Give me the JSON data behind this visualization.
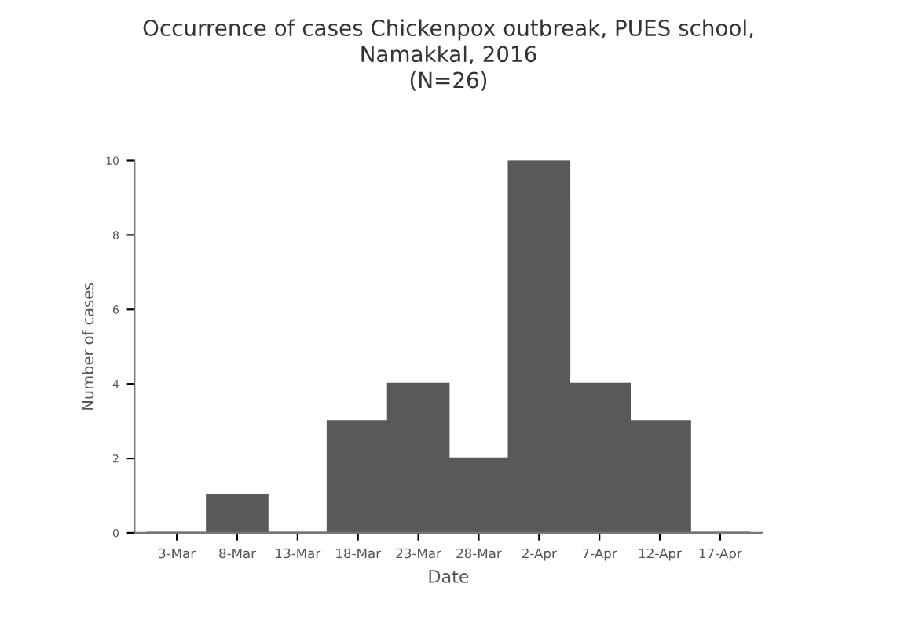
{
  "chart_data": {
    "type": "bar",
    "title": "Occurrence of cases Chickenpox outbreak, PUES school,\nNamakkal, 2016\n(N=26)",
    "xlabel": "Date",
    "ylabel": "Number of cases",
    "categories": [
      "3-Mar",
      "8-Mar",
      "13-Mar",
      "18-Mar",
      "23-Mar",
      "28-Mar",
      "2-Apr",
      "7-Apr",
      "12-Apr",
      "17-Apr"
    ],
    "values": [
      0,
      1,
      0,
      3,
      4,
      2,
      10,
      4,
      3,
      0
    ],
    "color": "#595959",
    "ylim": [
      0,
      10
    ],
    "yticks": [
      0,
      2,
      4,
      6,
      8,
      10
    ],
    "grid": false,
    "legend": false
  }
}
